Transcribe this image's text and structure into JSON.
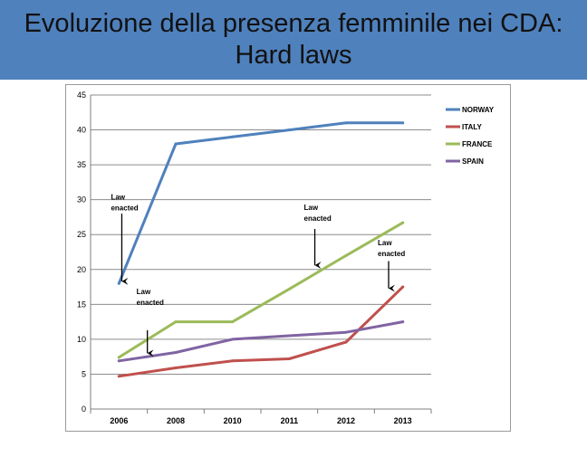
{
  "slide": {
    "title_line1": "Evoluzione della presenza femminile nei CDA:",
    "title_line2": "Hard laws"
  },
  "chart_data": {
    "type": "line",
    "title": "",
    "xlabel": "",
    "ylabel": "",
    "categories": [
      "2006",
      "2008",
      "2010",
      "2011",
      "2012",
      "2013"
    ],
    "ylim": [
      0,
      45
    ],
    "yticks": [
      0,
      5,
      10,
      15,
      20,
      25,
      30,
      35,
      40,
      45
    ],
    "grid": true,
    "legend_position": "right",
    "series": [
      {
        "name": "NORWAY",
        "color": "#4f81bd",
        "values": [
          18,
          38,
          39,
          40,
          41,
          41
        ]
      },
      {
        "name": "ITALY",
        "color": "#c0504d",
        "values": [
          4.7,
          5.9,
          6.9,
          7.2,
          9.6,
          17.5
        ]
      },
      {
        "name": "FRANCE",
        "color": "#9bbb59",
        "values": [
          7.4,
          12.5,
          12.5,
          17.2,
          22,
          26.7
        ]
      },
      {
        "name": "SPAIN",
        "color": "#8064a2",
        "values": [
          6.9,
          8.1,
          10,
          10.5,
          11,
          12.5
        ]
      }
    ],
    "annotations": [
      {
        "text_line1": "Law",
        "text_line2": "enacted",
        "x": 0.05,
        "y_text": 30,
        "arrow_from": 28,
        "arrow_to": 18.3
      },
      {
        "text_line1": "Law",
        "text_line2": "enacted",
        "x": 0.5,
        "y_text": 16.5,
        "arrow_from": 11.3,
        "arrow_to": 8
      },
      {
        "text_line1": "Law",
        "text_line2": "enacted",
        "x": 3.45,
        "y_text": 28.5,
        "arrow_from": 25.8,
        "arrow_to": 20.6
      },
      {
        "text_line1": "Law",
        "text_line2": "enacted",
        "x": 4.75,
        "y_text": 23.5,
        "arrow_from": 21.2,
        "arrow_to": 17.3
      }
    ]
  }
}
